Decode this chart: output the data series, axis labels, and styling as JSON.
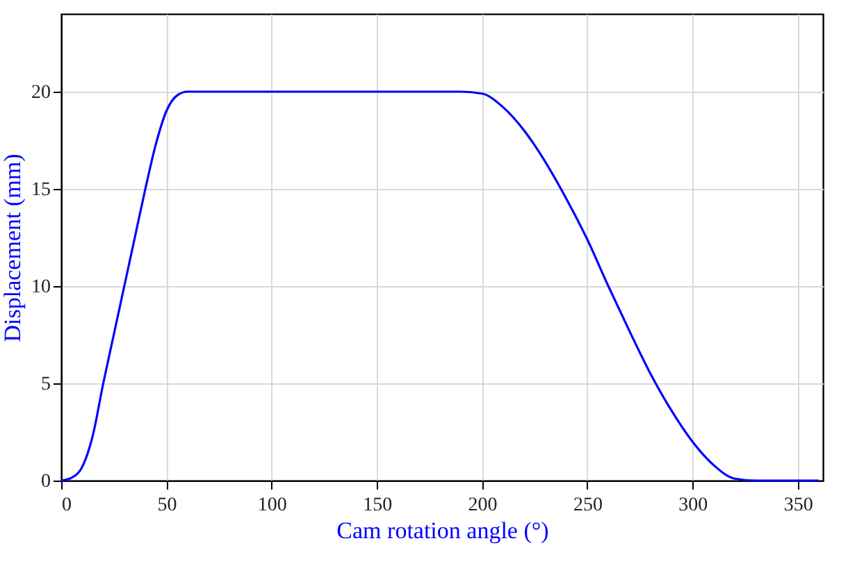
{
  "chart_data": {
    "type": "line",
    "xlabel": "Cam rotation angle (°)",
    "ylabel": "Displacement (mm)",
    "x": [
      0,
      5,
      10,
      15,
      20,
      25,
      30,
      35,
      40,
      45,
      50,
      55,
      60,
      190,
      200,
      210,
      220,
      230,
      240,
      250,
      260,
      270,
      280,
      290,
      300,
      310,
      320,
      330,
      360
    ],
    "series": [
      {
        "color": "#0000ff",
        "values": [
          0,
          0.15,
          0.7,
          2.3,
          5,
          7.5,
          10,
          12.5,
          15,
          17.3,
          19,
          19.8,
          20,
          20,
          19.9,
          19.2,
          18.0,
          16.4,
          14.5,
          12.4,
          10,
          7.7,
          5.5,
          3.6,
          2,
          0.8,
          0.1,
          0,
          0
        ]
      }
    ],
    "xlim": [
      0,
      362
    ],
    "ylim": [
      0,
      24
    ],
    "xticks": [
      0,
      50,
      100,
      150,
      200,
      250,
      300,
      350
    ],
    "yticks": [
      0,
      5,
      10,
      15,
      20
    ],
    "grid": true,
    "line_style": "solid",
    "marker": "none"
  }
}
